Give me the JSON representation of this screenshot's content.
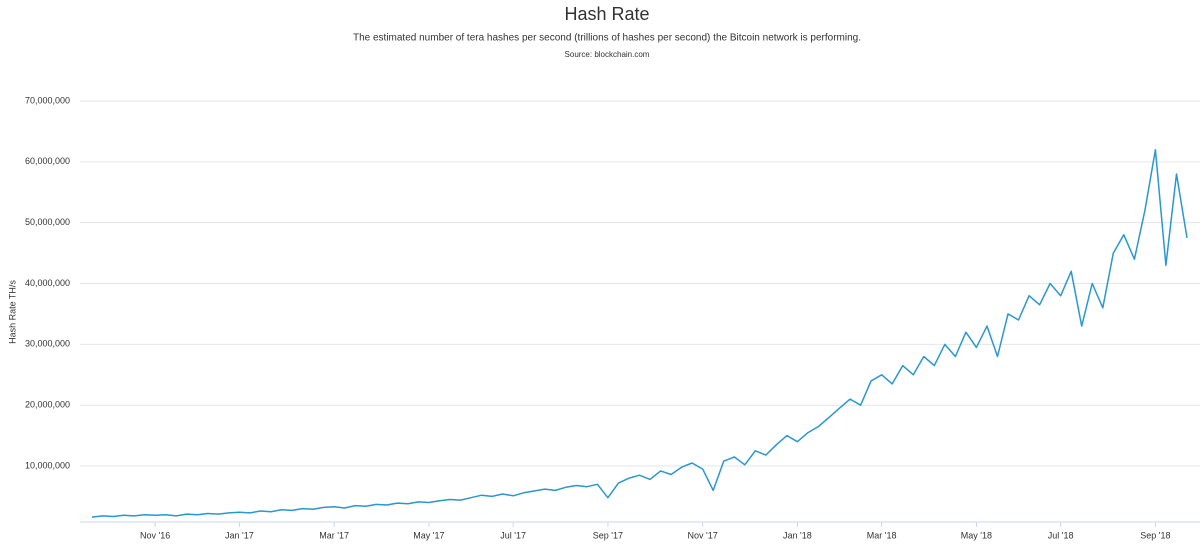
{
  "chart_data": {
    "type": "line",
    "title": "Hash Rate",
    "subtitle": "The estimated number of tera hashes per second (trillions of hashes per second) the Bitcoin network is performing.",
    "source": "Source: blockchain.com",
    "y_label": "Hash Rate TH/s",
    "categories": [
      null,
      null,
      null,
      null,
      null,
      null,
      "Nov '16",
      null,
      null,
      null,
      null,
      null,
      null,
      null,
      "Jan '17",
      null,
      null,
      null,
      null,
      null,
      null,
      null,
      null,
      "Mar '17",
      null,
      null,
      null,
      null,
      null,
      null,
      null,
      null,
      "May '17",
      null,
      null,
      null,
      null,
      null,
      null,
      null,
      "Jul '17",
      null,
      null,
      null,
      null,
      null,
      null,
      null,
      null,
      "Sep '17",
      null,
      null,
      null,
      null,
      null,
      null,
      null,
      null,
      "Nov '17",
      null,
      null,
      null,
      null,
      null,
      null,
      null,
      null,
      "Jan '18",
      null,
      null,
      null,
      null,
      null,
      null,
      null,
      "Mar '18",
      null,
      null,
      null,
      null,
      null,
      null,
      null,
      null,
      "May '18",
      null,
      null,
      null,
      null,
      null,
      null,
      null,
      "Jul '18",
      null,
      null,
      null,
      null,
      null,
      null,
      null,
      null,
      "Sep '18",
      null,
      null,
      null
    ],
    "series": [
      {
        "name": "Hash Rate",
        "color": "#2a97cf",
        "values": [
          1600000,
          1800000,
          1700000,
          1900000,
          1800000,
          2000000,
          1900000,
          2000000,
          1800000,
          2100000,
          2000000,
          2200000,
          2100000,
          2300000,
          2400000,
          2300000,
          2600000,
          2500000,
          2800000,
          2700000,
          3000000,
          2900000,
          3200000,
          3300000,
          3100000,
          3500000,
          3400000,
          3700000,
          3600000,
          3900000,
          3800000,
          4100000,
          4000000,
          4300000,
          4500000,
          4400000,
          4800000,
          5200000,
          5000000,
          5400000,
          5100000,
          5600000,
          5900000,
          6200000,
          6000000,
          6500000,
          6800000,
          6600000,
          7000000,
          4800000,
          7200000,
          8000000,
          8500000,
          7800000,
          9200000,
          8600000,
          9800000,
          10500000,
          9500000,
          6000000,
          10800000,
          11500000,
          10200000,
          12500000,
          11800000,
          13500000,
          15000000,
          14000000,
          15500000,
          16500000,
          18000000,
          19500000,
          21000000,
          20000000,
          24000000,
          25000000,
          23500000,
          26500000,
          25000000,
          28000000,
          26500000,
          30000000,
          28000000,
          32000000,
          29500000,
          33000000,
          28000000,
          35000000,
          34000000,
          38000000,
          36500000,
          40000000,
          38000000,
          42000000,
          33000000,
          40000000,
          36000000,
          45000000,
          48000000,
          44000000,
          52000000,
          62000000,
          43000000,
          58000000,
          47500000
        ]
      }
    ],
    "ylim": [
      800000,
      70000000
    ],
    "yticks": [
      {
        "value": 10000000,
        "label": "10,000,000"
      },
      {
        "value": 20000000,
        "label": "20,000,000"
      },
      {
        "value": 30000000,
        "label": "30,000,000"
      },
      {
        "value": 40000000,
        "label": "40,000,000"
      },
      {
        "value": 50000000,
        "label": "50,000,000"
      },
      {
        "value": 60000000,
        "label": "60,000,000"
      },
      {
        "value": 70000000,
        "label": "70,000,000"
      }
    ],
    "grid": true
  }
}
